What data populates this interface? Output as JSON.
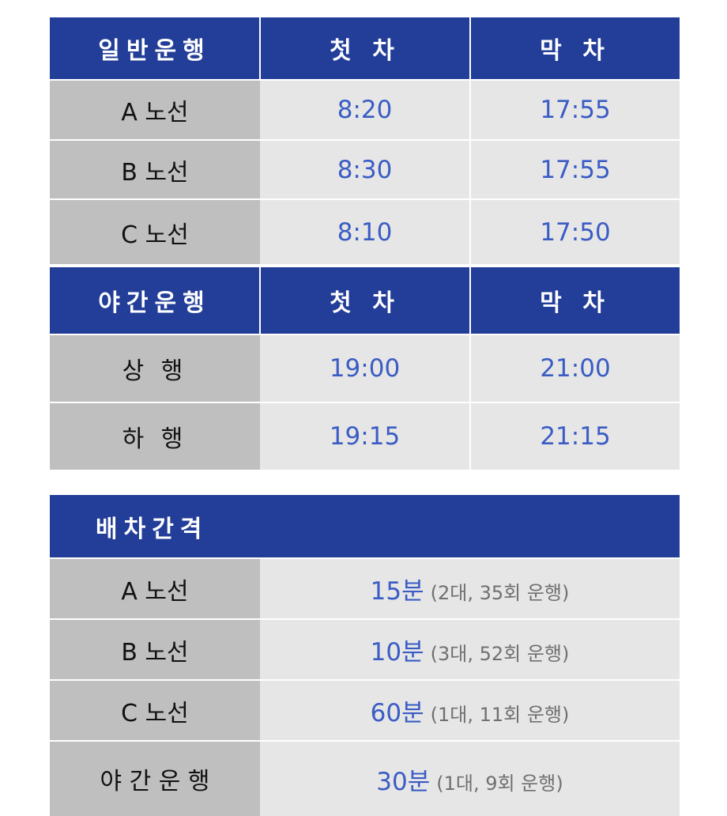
{
  "schedule": {
    "header_day": [
      "일반운행",
      "첫 차",
      "막 차"
    ],
    "day_rows": [
      {
        "route": "A 노선",
        "first": "8:20",
        "last": "17:55"
      },
      {
        "route": "B 노선",
        "first": "8:30",
        "last": "17:55"
      },
      {
        "route": "C 노선",
        "first": "8:10",
        "last": "17:50"
      }
    ],
    "header_night": [
      "야간운행",
      "첫 차",
      "막 차"
    ],
    "night_rows": [
      {
        "route": "상 행",
        "first": "19:00",
        "last": "21:00"
      },
      {
        "route": "하 행",
        "first": "19:15",
        "last": "21:15"
      }
    ]
  },
  "intervals": {
    "title": "배차간격",
    "rows": [
      {
        "route": "A 노선",
        "interval": "15분",
        "note": "(2대, 35회 운행)"
      },
      {
        "route": "B 노선",
        "interval": "10분",
        "note": "(3대, 52회 운행)"
      },
      {
        "route": "C 노선",
        "interval": "60분",
        "note": "(1대, 11회 운행)"
      },
      {
        "route": "야 간 운 행",
        "interval": "30분",
        "note": "(1대, 9회 운행)"
      }
    ]
  }
}
